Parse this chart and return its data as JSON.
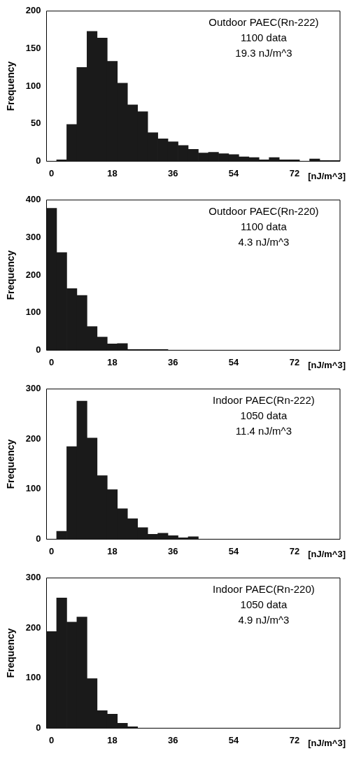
{
  "chart_data": [
    {
      "type": "histogram",
      "ylabel": "Frequency",
      "xlabel": "[nJ/m^3]",
      "color": "#1a1a1a",
      "bins": [
        -1.5,
        1.5,
        4.5,
        7.5,
        10.5,
        13.5,
        16.5,
        19.5,
        22.5,
        25.5,
        28.5,
        31.5,
        34.5,
        37.5,
        40.5,
        43.5,
        46.5,
        49.5,
        52.5,
        55.5,
        58.5,
        61.5,
        64.5,
        67.5,
        70.5,
        73.5,
        76.5,
        79.5,
        82.5,
        85.5
      ],
      "values": [
        0,
        2,
        49,
        125,
        173,
        164,
        133,
        104,
        75,
        66,
        38,
        30,
        26,
        21,
        16,
        11,
        12,
        10,
        9,
        6,
        5,
        2,
        5,
        2,
        2,
        0,
        3,
        1,
        1
      ],
      "xlim": [
        -1.5,
        85.5
      ],
      "xticks": [
        0,
        18,
        36,
        54,
        72
      ],
      "ylim": [
        0,
        200
      ],
      "yticks": [
        0,
        50,
        100,
        150,
        200
      ],
      "annotations": [
        "Outdoor PAEC(Rn-222)",
        "1100 data",
        "19.3 nJ/m^3"
      ]
    },
    {
      "type": "histogram",
      "ylabel": "Frequency",
      "xlabel": "[nJ/m^3]",
      "color": "#1a1a1a",
      "bins": [
        -1.5,
        1.5,
        4.5,
        7.5,
        10.5,
        13.5,
        16.5,
        19.5,
        22.5,
        25.5,
        28.5,
        31.5,
        34.5,
        37.5,
        40.5,
        43.5,
        46.5,
        49.5,
        52.5,
        55.5,
        58.5,
        61.5,
        64.5,
        67.5,
        70.5,
        73.5,
        76.5,
        79.5,
        82.5,
        85.5
      ],
      "values": [
        378,
        260,
        164,
        146,
        63,
        35,
        17,
        18,
        2,
        2,
        2,
        2,
        0,
        0,
        0,
        0,
        0,
        0,
        0,
        0,
        0,
        0,
        0,
        0,
        0,
        0,
        0,
        0,
        0
      ],
      "xlim": [
        -1.5,
        85.5
      ],
      "xticks": [
        0,
        18,
        36,
        54,
        72
      ],
      "ylim": [
        0,
        400
      ],
      "yticks": [
        0,
        100,
        200,
        300,
        400
      ],
      "annotations": [
        "Outdoor PAEC(Rn-220)",
        "1100 data",
        "4.3 nJ/m^3"
      ]
    },
    {
      "type": "histogram",
      "ylabel": "Frequency",
      "xlabel": "[nJ/m^3]",
      "color": "#1a1a1a",
      "bins": [
        -1.5,
        1.5,
        4.5,
        7.5,
        10.5,
        13.5,
        16.5,
        19.5,
        22.5,
        25.5,
        28.5,
        31.5,
        34.5,
        37.5,
        40.5,
        43.5,
        46.5,
        49.5,
        52.5,
        55.5,
        58.5,
        61.5,
        64.5,
        67.5,
        70.5,
        73.5,
        76.5,
        79.5,
        82.5,
        85.5
      ],
      "values": [
        0,
        16,
        185,
        276,
        202,
        127,
        99,
        61,
        41,
        23,
        10,
        12,
        7,
        3,
        5,
        0,
        0,
        0,
        0,
        0,
        0,
        0,
        0,
        0,
        0,
        0,
        0,
        0,
        0
      ],
      "xlim": [
        -1.5,
        85.5
      ],
      "xticks": [
        0,
        18,
        36,
        54,
        72
      ],
      "ylim": [
        0,
        300
      ],
      "yticks": [
        0,
        100,
        200,
        300
      ],
      "annotations": [
        "Indoor PAEC(Rn-222)",
        "1050 data",
        "11.4 nJ/m^3"
      ]
    },
    {
      "type": "histogram",
      "ylabel": "Frequency",
      "xlabel": "[nJ/m^3]",
      "color": "#1a1a1a",
      "bins": [
        -1.5,
        1.5,
        4.5,
        7.5,
        10.5,
        13.5,
        16.5,
        19.5,
        22.5,
        25.5,
        28.5,
        31.5,
        34.5,
        37.5,
        40.5,
        43.5,
        46.5,
        49.5,
        52.5,
        55.5,
        58.5,
        61.5,
        64.5,
        67.5,
        70.5,
        73.5,
        76.5,
        79.5,
        82.5,
        85.5
      ],
      "values": [
        193,
        260,
        212,
        222,
        99,
        35,
        28,
        10,
        3,
        0,
        0,
        0,
        0,
        0,
        0,
        0,
        0,
        0,
        0,
        0,
        0,
        0,
        0,
        0,
        0,
        0,
        0,
        0,
        0
      ],
      "xlim": [
        -1.5,
        85.5
      ],
      "xticks": [
        0,
        18,
        36,
        54,
        72
      ],
      "ylim": [
        0,
        300
      ],
      "yticks": [
        0,
        100,
        200,
        300
      ],
      "annotations": [
        "Indoor PAEC(Rn-220)",
        "1050 data",
        "4.9 nJ/m^3"
      ]
    }
  ]
}
